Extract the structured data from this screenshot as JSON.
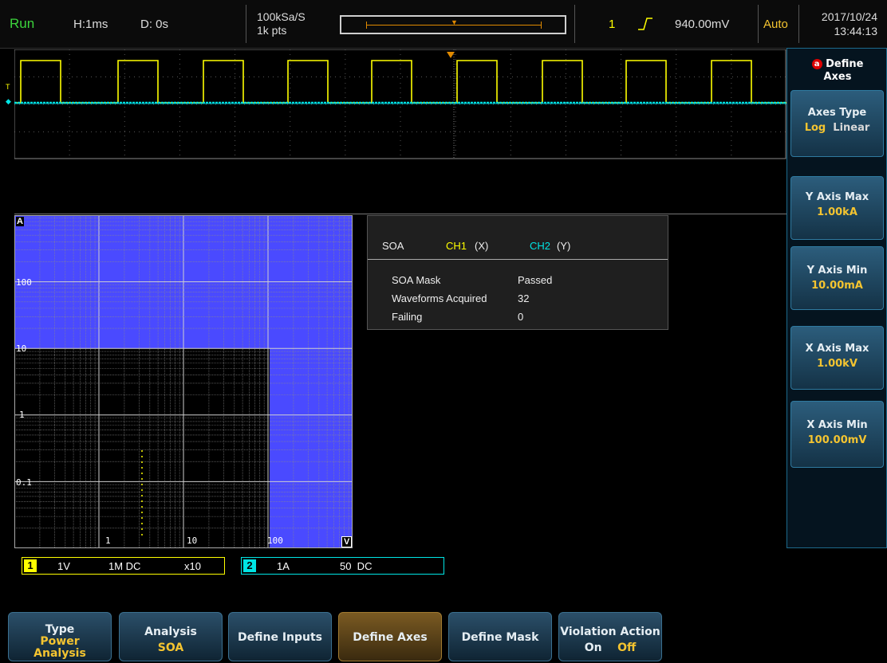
{
  "topbar": {
    "run_state": "Run",
    "horizontal": "H:1ms",
    "delay": "D: 0s",
    "sample_rate": "100kSa/S",
    "points": "1k pts",
    "trigger_channel": "1",
    "trigger_level": "940.00mV",
    "trigger_mode": "Auto",
    "date": "2017/10/24",
    "time": "13:44:13"
  },
  "side_menu": {
    "header_badge": "a",
    "header_line1": "Define",
    "header_line2": "Axes",
    "axes_type_label": "Axes Type",
    "axes_type_opt1": "Log",
    "axes_type_opt2": "Linear",
    "y_max_label": "Y Axis Max",
    "y_max_value": "1.00kA",
    "y_min_label": "Y Axis Min",
    "y_min_value": "10.00mA",
    "x_max_label": "X Axis Max",
    "x_max_value": "1.00kV",
    "x_min_label": "X Axis Min",
    "x_min_value": "100.00mV"
  },
  "soa_plot": {
    "y_unit": "A",
    "x_unit": "V",
    "y_ticks": [
      "100",
      "10",
      "1",
      "0.1"
    ],
    "x_ticks": [
      "1",
      "10",
      "100"
    ]
  },
  "info": {
    "title": "SOA",
    "ch1": "CH1",
    "ch1_axis": "(X)",
    "ch2": "CH2",
    "ch2_axis": "(Y)",
    "rows": [
      {
        "label": "SOA Mask",
        "value": "Passed"
      },
      {
        "label": "Waveforms Acquired",
        "value": "32"
      },
      {
        "label": "Failing",
        "value": "0"
      }
    ]
  },
  "channels": {
    "ch1": {
      "num": "1",
      "scale": "1V",
      "coupling": "1M DC",
      "probe": "x10"
    },
    "ch2": {
      "num": "2",
      "scale": "1A",
      "coupling": "50  DC"
    }
  },
  "bottom_menu": {
    "type_label": "Type",
    "type_value_1": "Power",
    "type_value_2": "Analysis",
    "analysis_label": "Analysis",
    "analysis_value": "SOA",
    "define_inputs": "Define Inputs",
    "define_axes": "Define Axes",
    "define_mask": "Define Mask",
    "violation_label": "Violation Action",
    "violation_on": "On",
    "violation_off": "Off"
  },
  "colors": {
    "ch1": "#ffff00",
    "ch2": "#00e5e5",
    "mask": "#4a4aff",
    "accent": "#f4c430"
  }
}
